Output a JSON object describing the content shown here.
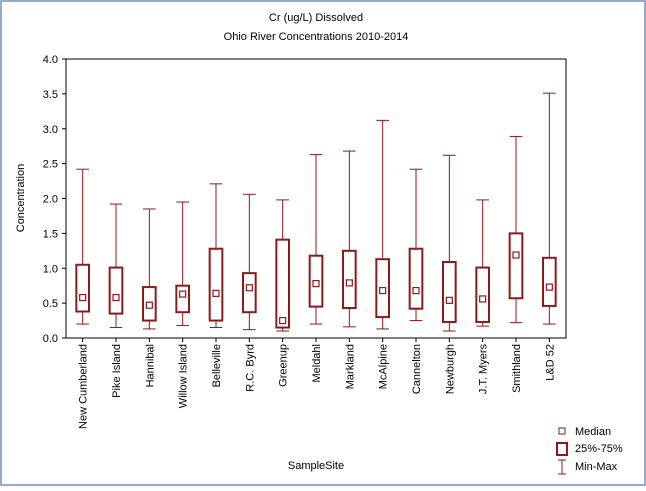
{
  "chart_data": {
    "type": "box",
    "title": "Cr (ug/L) Dissolved",
    "subtitle": "Ohio River Concentrations 2010-2014",
    "y_label": "Concentration",
    "x_label": "SampleSite",
    "color": "#8b1a1a",
    "categories": [
      "New Cumberland",
      "Pike Island",
      "Hannibal",
      "Willow Island",
      "Belleville",
      "R.C. Byrd",
      "Greenup",
      "Meldahl",
      "Markland",
      "McAlpine",
      "Cannelton",
      "Newburgh",
      "J.T. Myers",
      "Smithland",
      "L&D 52"
    ],
    "min": [
      0.2,
      0.15,
      0.13,
      0.18,
      0.15,
      0.12,
      0.1,
      0.2,
      0.16,
      0.13,
      0.25,
      0.1,
      0.17,
      0.22,
      0.2
    ],
    "q1": [
      0.38,
      0.35,
      0.25,
      0.37,
      0.25,
      0.37,
      0.15,
      0.45,
      0.43,
      0.3,
      0.42,
      0.23,
      0.23,
      0.57,
      0.46
    ],
    "median": [
      0.58,
      0.58,
      0.47,
      0.63,
      0.64,
      0.72,
      0.25,
      0.78,
      0.79,
      0.68,
      0.68,
      0.54,
      0.56,
      1.19,
      0.73
    ],
    "q3": [
      1.05,
      1.01,
      0.73,
      0.75,
      1.28,
      0.93,
      1.41,
      1.18,
      1.25,
      1.13,
      1.28,
      1.09,
      1.01,
      1.5,
      1.15
    ],
    "max": [
      2.42,
      1.92,
      1.85,
      1.95,
      2.21,
      2.06,
      1.98,
      2.63,
      2.68,
      3.12,
      2.42,
      2.62,
      1.98,
      2.89,
      3.51
    ],
    "legend": [
      "Median",
      "25%-75%",
      "Min-Max"
    ],
    "ylim": [
      0,
      4
    ],
    "yticks": [
      {
        "value": 0,
        "label": "0.0"
      },
      {
        "value": 0.5,
        "label": "0.5"
      },
      {
        "value": 1,
        "label": "1.0"
      },
      {
        "value": 1.5,
        "label": "1.5"
      },
      {
        "value": 2,
        "label": "2.0"
      },
      {
        "value": 2.5,
        "label": "2.5"
      },
      {
        "value": 3,
        "label": "3.0"
      },
      {
        "value": 3.5,
        "label": "3.5"
      },
      {
        "value": 4,
        "label": "4.0"
      }
    ]
  }
}
